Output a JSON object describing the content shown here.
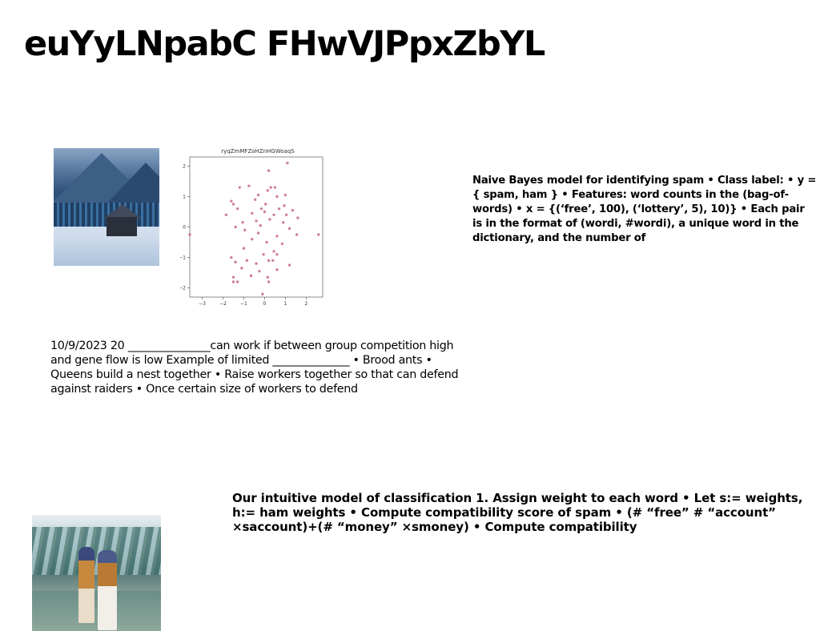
{
  "title": "euYyLNpabC FHwVJPpxZbYL",
  "blocks": {
    "naive_bayes": "Naive Bayes model for identifying spam • Class label: • y ={ spam, ham } • Features: word counts in the (bag-of-words) • x = {(‘free’, 100), (‘lottery’, 5), 10)} • Each pair is in the format of (wordi, #wordi), a unique word in the dictionary, and the number of",
    "ants": "10/9/2023 20 _______________can work if between group competition high and gene flow is low Example of limited ______________ • Brood ants • Queens build a nest together • Raise workers together so that can defend against raiders • Once certain size of workers to defend",
    "classification": "Our intuitive model of classification 1. Assign weight to each word • Let s:= weights, h:= ham weights • Compute compatibility score of spam • (# “free” # “account” ×saccount)+(# “money” ×smoney) • Compute compatibility"
  },
  "images": {
    "winter_photo": "winter-cabin-photo",
    "people_photo": "two-people-outdoors-photo"
  },
  "chart_data": {
    "type": "scatter",
    "title": "ryqZmMFZoHZnHGWoaqS",
    "xlabel": "",
    "ylabel": "",
    "xlim": [
      -3.6,
      2.8
    ],
    "ylim": [
      -2.3,
      2.3
    ],
    "xticks": [
      -3,
      -2,
      -1,
      0,
      1,
      2
    ],
    "yticks": [
      -2,
      -1,
      0,
      1,
      2
    ],
    "grid": false,
    "color": "#c46a8a",
    "points": [
      {
        "x": 1.1,
        "y": 2.1
      },
      {
        "x": 0.2,
        "y": 1.85
      },
      {
        "x": -1.2,
        "y": 1.3
      },
      {
        "x": -0.75,
        "y": 1.35
      },
      {
        "x": 0.3,
        "y": 1.3
      },
      {
        "x": 0.15,
        "y": 1.2
      },
      {
        "x": 0.5,
        "y": 1.3
      },
      {
        "x": -0.3,
        "y": 1.05
      },
      {
        "x": 0.6,
        "y": 1.0
      },
      {
        "x": 1.0,
        "y": 1.05
      },
      {
        "x": -1.6,
        "y": 0.85
      },
      {
        "x": -1.5,
        "y": 0.75
      },
      {
        "x": -0.45,
        "y": 0.9
      },
      {
        "x": 0.05,
        "y": 0.75
      },
      {
        "x": 0.95,
        "y": 0.7
      },
      {
        "x": -1.3,
        "y": 0.6
      },
      {
        "x": -0.15,
        "y": 0.6
      },
      {
        "x": 0.7,
        "y": 0.6
      },
      {
        "x": 1.35,
        "y": 0.55
      },
      {
        "x": -1.85,
        "y": 0.4
      },
      {
        "x": -0.6,
        "y": 0.45
      },
      {
        "x": 0.0,
        "y": 0.5
      },
      {
        "x": 0.45,
        "y": 0.4
      },
      {
        "x": 1.05,
        "y": 0.4
      },
      {
        "x": 1.6,
        "y": 0.3
      },
      {
        "x": -1.05,
        "y": 0.15
      },
      {
        "x": -0.4,
        "y": 0.2
      },
      {
        "x": 0.25,
        "y": 0.25
      },
      {
        "x": 0.9,
        "y": 0.15
      },
      {
        "x": -1.4,
        "y": 0.0
      },
      {
        "x": -0.2,
        "y": 0.05
      },
      {
        "x": 1.2,
        "y": -0.05
      },
      {
        "x": -3.6,
        "y": -0.25
      },
      {
        "x": 2.6,
        "y": -0.25
      },
      {
        "x": -0.95,
        "y": -0.1
      },
      {
        "x": -0.3,
        "y": -0.2
      },
      {
        "x": 0.6,
        "y": -0.3
      },
      {
        "x": 1.55,
        "y": -0.25
      },
      {
        "x": -0.6,
        "y": -0.4
      },
      {
        "x": 0.1,
        "y": -0.5
      },
      {
        "x": 0.85,
        "y": -0.55
      },
      {
        "x": -1.0,
        "y": -0.7
      },
      {
        "x": 0.45,
        "y": -0.8
      },
      {
        "x": 0.6,
        "y": -0.9
      },
      {
        "x": -0.05,
        "y": -0.9
      },
      {
        "x": -1.6,
        "y": -1.0
      },
      {
        "x": -0.85,
        "y": -1.1
      },
      {
        "x": 0.2,
        "y": -1.1
      },
      {
        "x": 0.4,
        "y": -1.1
      },
      {
        "x": -1.4,
        "y": -1.15
      },
      {
        "x": -0.4,
        "y": -1.2
      },
      {
        "x": 1.2,
        "y": -1.25
      },
      {
        "x": -1.1,
        "y": -1.35
      },
      {
        "x": -0.25,
        "y": -1.45
      },
      {
        "x": 0.6,
        "y": -1.4
      },
      {
        "x": -1.5,
        "y": -1.65
      },
      {
        "x": -0.65,
        "y": -1.6
      },
      {
        "x": 0.15,
        "y": -1.65
      },
      {
        "x": -1.3,
        "y": -1.8
      },
      {
        "x": -1.5,
        "y": -1.8
      },
      {
        "x": 0.2,
        "y": -1.8
      },
      {
        "x": -0.1,
        "y": -2.2
      }
    ]
  }
}
